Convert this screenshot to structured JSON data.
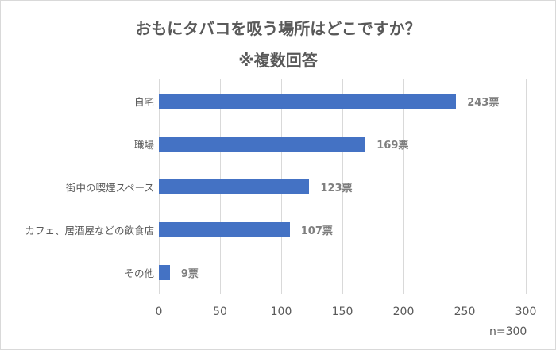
{
  "chart_data": {
    "type": "bar",
    "orientation": "horizontal",
    "title": "おもにタバコを吸う場所はどこですか？",
    "subtitle": "※複数回答",
    "categories": [
      "自宅",
      "職場",
      "街中の喫煙スペース",
      "カフェ、居酒屋などの飲食店",
      "その他"
    ],
    "values": [
      243,
      169,
      123,
      107,
      9
    ],
    "data_labels": [
      "243票",
      "169票",
      "123票",
      "107票",
      "9票"
    ],
    "xlabel": "",
    "ylabel": "",
    "xlim": [
      0,
      300
    ],
    "x_ticks": [
      "0",
      "50",
      "100",
      "150",
      "200",
      "250",
      "300"
    ],
    "grid": true,
    "legend": null,
    "annotation": "n=300",
    "bar_color": "#4472c4"
  },
  "labels": {
    "title": "おもにタバコを吸う場所はどこですか？",
    "subtitle": "※複数回答",
    "note": "n=300"
  }
}
